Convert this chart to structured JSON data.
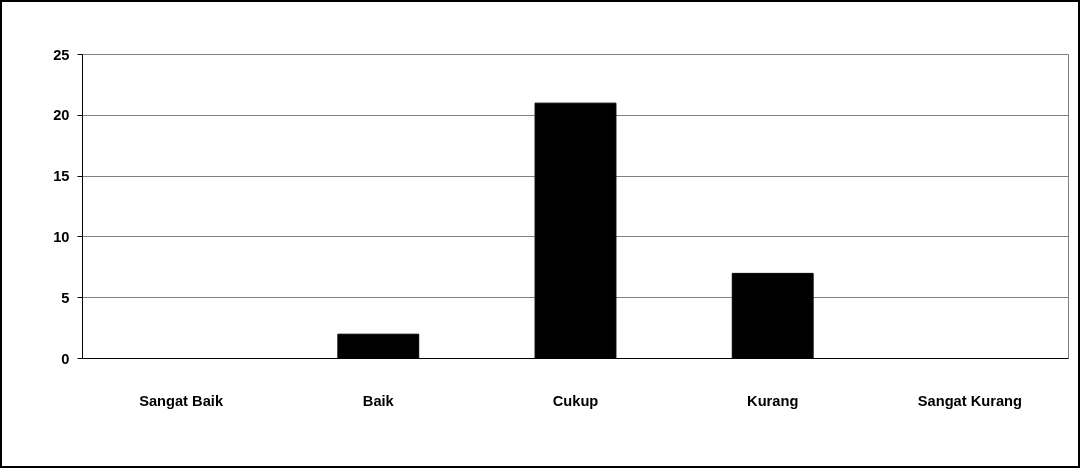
{
  "chart_data": {
    "type": "bar",
    "categories": [
      "Sangat Baik",
      "Baik",
      "Cukup",
      "Kurang",
      "Sangat Kurang"
    ],
    "values": [
      0,
      2,
      21,
      7,
      0
    ],
    "color": "#000000",
    "ylim": [
      0,
      25
    ],
    "yticks": [
      0,
      5,
      10,
      15,
      20,
      25
    ],
    "grid": "y"
  }
}
